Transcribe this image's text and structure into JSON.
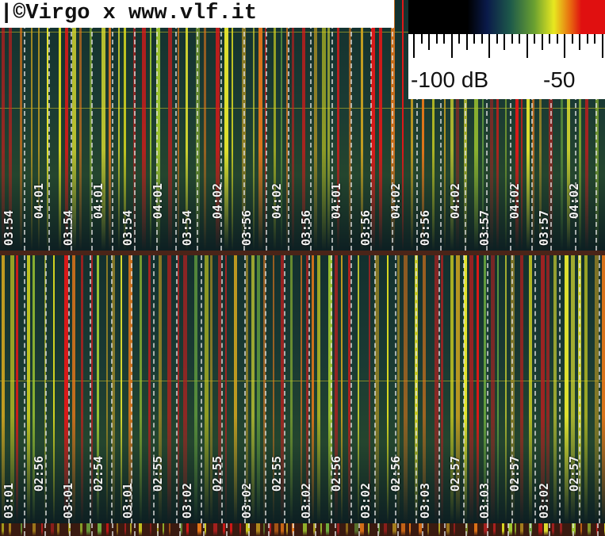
{
  "watermark": "|©Virgo x www.vlf.it",
  "legend": {
    "left_label": "-100 dB",
    "right_label": "-50",
    "colors": [
      "#000000",
      "#0a1a4a",
      "#1e5a4a",
      "#6aa030",
      "#e8e820",
      "#e87010",
      "#e01010"
    ]
  },
  "top_panel": {
    "time_labels": [
      "03:54",
      "04:01",
      "03:54",
      "04:01",
      "03:54",
      "04:01",
      "03:54",
      "04:02",
      "03:56",
      "04:02",
      "03:56",
      "04:01",
      "03:56",
      "04:02",
      "03:56",
      "04:02",
      "03:57",
      "04:02",
      "03:57",
      "04:02"
    ]
  },
  "bottom_panel": {
    "time_labels": [
      "03:01",
      "02:56",
      "03:01",
      "02:54",
      "03:01",
      "02:55",
      "03:02",
      "02:55",
      "03:02",
      "02:55",
      "03:02",
      "02:56",
      "03:02",
      "02:56",
      "03:03",
      "02:57",
      "03:03",
      "02:57",
      "03:02",
      "02:57"
    ]
  }
}
